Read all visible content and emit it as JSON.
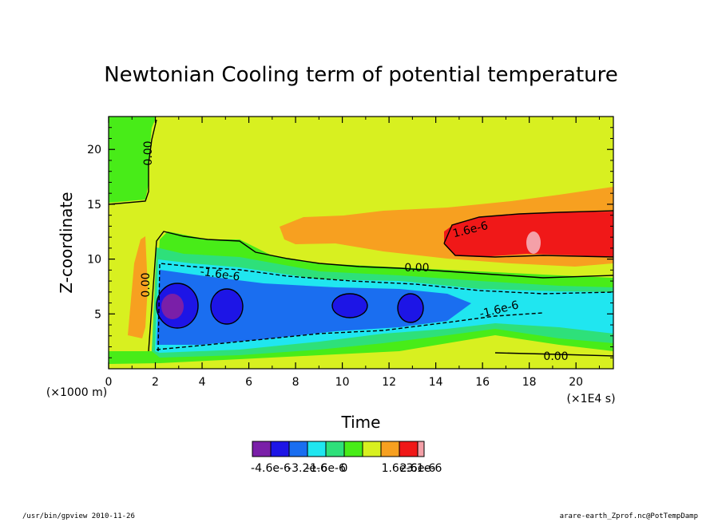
{
  "chart_data": {
    "type": "heatmap",
    "title": "Newtonian Cooling term of potential temperature",
    "xlabel": "Time",
    "ylabel": "Z-coordinate",
    "x_scale_label": "(×1E4 s)",
    "y_scale_label": "(×1000 m)",
    "xlim": [
      0,
      21.6
    ],
    "ylim": [
      0,
      23
    ],
    "x_ticks": [
      "0",
      "2",
      "4",
      "6",
      "8",
      "10",
      "12",
      "14",
      "16",
      "18",
      "20"
    ],
    "x_tick_values": [
      0,
      2,
      4,
      6,
      8,
      10,
      12,
      14,
      16,
      18,
      20
    ],
    "y_ticks": [
      "5",
      "10",
      "15",
      "20"
    ],
    "y_tick_values": [
      5,
      10,
      15,
      20
    ],
    "contour_labels": [
      "0.00",
      "0.00",
      "-1.6e-6",
      "0.00",
      "1.6e-6",
      "-1.6e-6",
      "0.00"
    ],
    "colorbar": {
      "colors": [
        "#7a1fa8",
        "#1d15e6",
        "#1a6ef0",
        "#20e6f0",
        "#2ee07a",
        "#48ec18",
        "#d8f020",
        "#f7a020",
        "#f01818",
        "#f4a0a8"
      ],
      "tick_labels": [
        "-4.6e-6",
        "-3.2e-6",
        "-1.6e-6",
        "0",
        "1.6e-6",
        "2.6e-6",
        "3.1e-6"
      ]
    },
    "regions": [
      {
        "level": "-4.6e-6",
        "description": "core near t=2.6e4 s, z=6 km"
      },
      {
        "level": "-3.2e-6",
        "cells_at_time": [
          2.8,
          5.0,
          10.5,
          12.8
        ]
      },
      {
        "level": "1.6e-6",
        "band": "t 15-21.6, z 10.5-14.5"
      },
      {
        "level": "2.6e-6",
        "small spot": "t 18.3, z 12"
      }
    ]
  },
  "footer": {
    "left": "/usr/bin/gpview  2010-11-26",
    "right": "arare-earth_Zprof.nc@PotTempDamp"
  }
}
